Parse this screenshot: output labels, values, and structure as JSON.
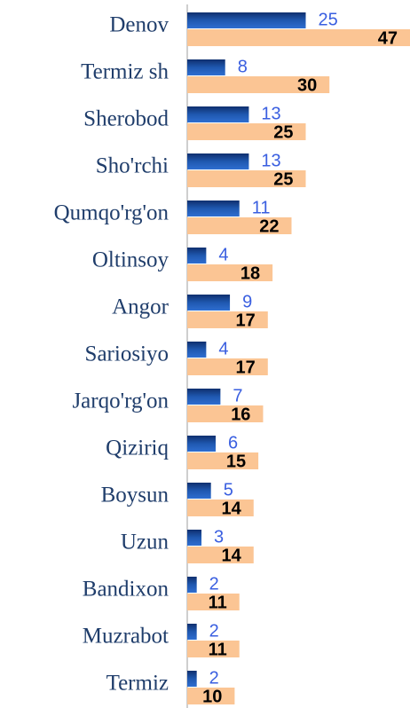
{
  "chart_data": {
    "type": "hbar",
    "categories": [
      "Denov",
      "Termiz sh",
      "Sherobod",
      "Sho'rchi",
      "Qumqo'rg'on",
      "Oltinsoy",
      "Angor",
      "Sariosiyo",
      "Jarqo'rg'on",
      "Qiziriq",
      "Boysun",
      "Uzun",
      "Bandixon",
      "Muzrabot",
      "Termiz"
    ],
    "series": [
      {
        "color": "#1f58b0",
        "label_color": "#3a5fe0",
        "values": [
          25,
          8,
          13,
          13,
          11,
          4,
          9,
          4,
          7,
          6,
          5,
          3,
          2,
          2,
          2
        ]
      },
      {
        "color": "#fbc594",
        "label_color": "#000000",
        "values": [
          47,
          30,
          25,
          25,
          22,
          18,
          17,
          17,
          16,
          15,
          14,
          14,
          11,
          11,
          10
        ]
      }
    ],
    "xlim": [
      0,
      47
    ]
  }
}
